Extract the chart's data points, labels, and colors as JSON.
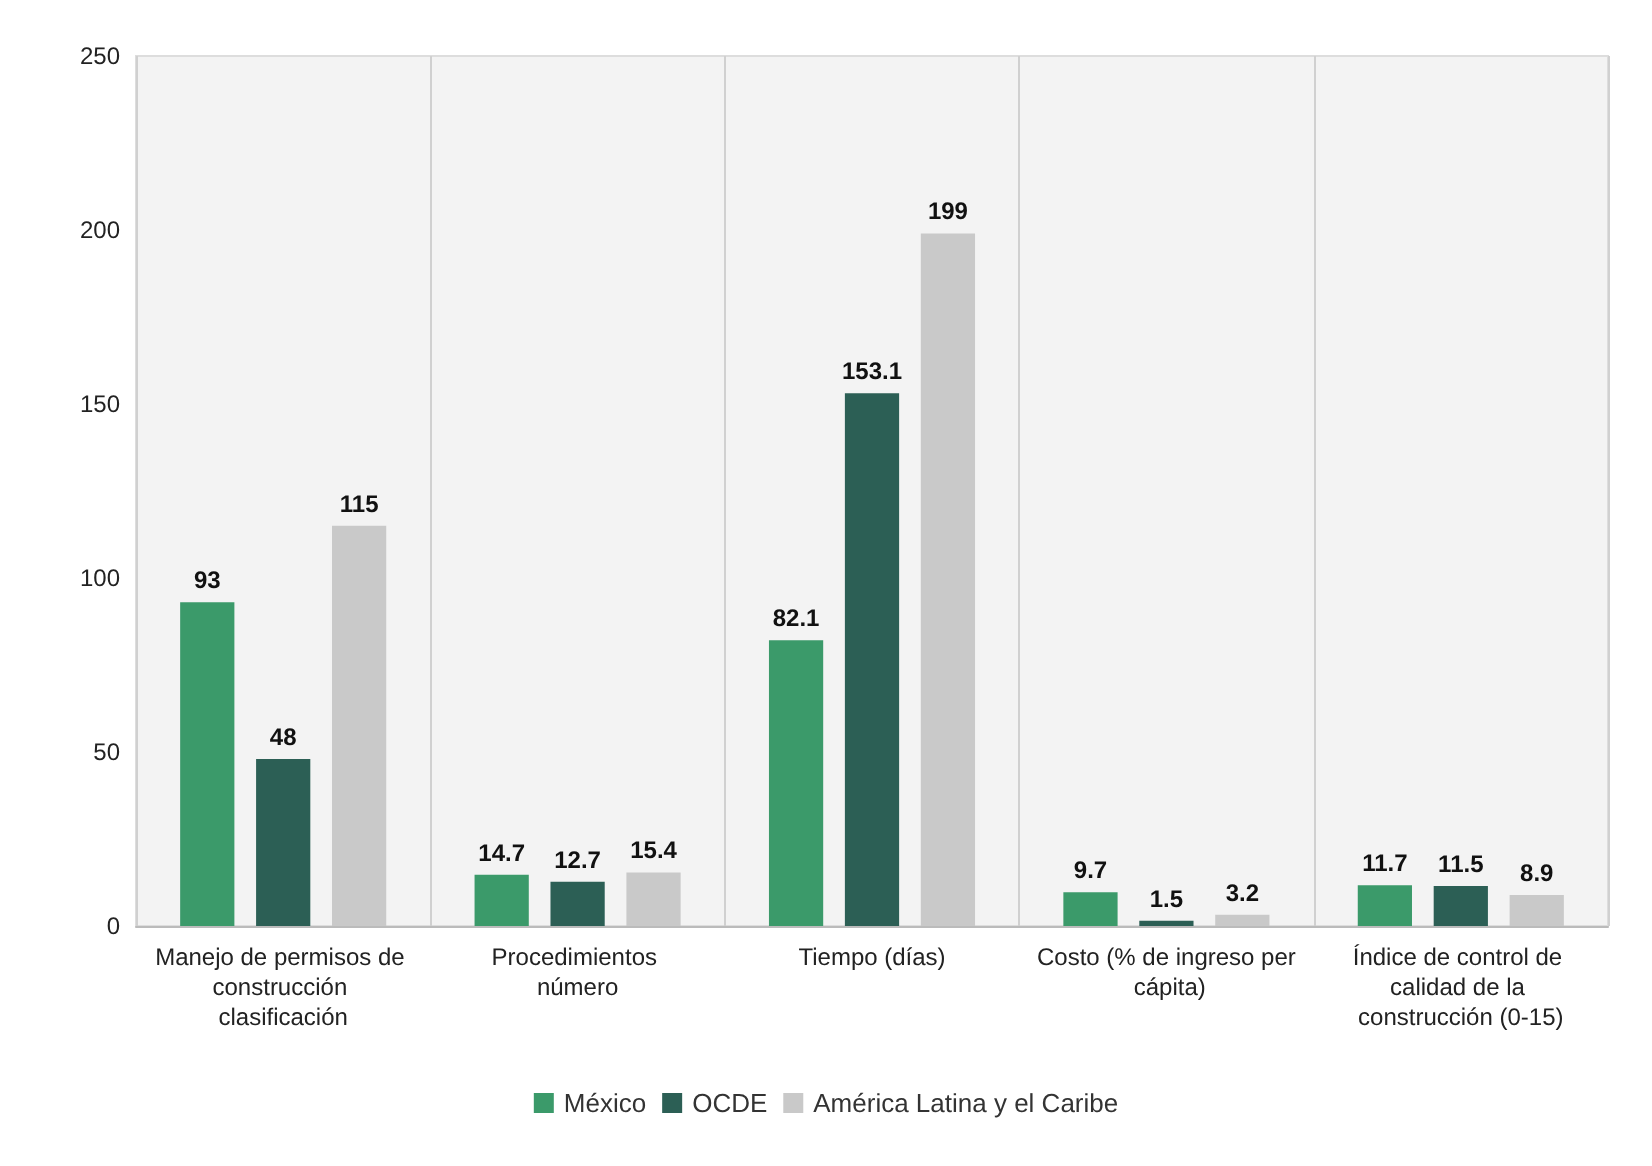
{
  "chart_data": {
    "type": "bar",
    "categories": [
      "Manejo de permisos de construcción clasificación",
      "Procedimientos número",
      "Tiempo (días)",
      "Costo (% de ingreso per cápita)",
      "Índice de control de calidad de la construcción (0-15)"
    ],
    "series": [
      {
        "name": "México",
        "color": "#3b9a6a",
        "values": [
          93,
          14.7,
          82.1,
          9.7,
          11.7
        ]
      },
      {
        "name": "OCDE",
        "color": "#2c5f55",
        "values": [
          48,
          12.7,
          153.1,
          1.5,
          11.5
        ]
      },
      {
        "name": "América Latina y el Caribe",
        "color": "#c9c9c9",
        "values": [
          115,
          15.4,
          199,
          3.2,
          8.9
        ]
      }
    ],
    "ylim": [
      0,
      250
    ],
    "yticks": [
      0,
      50,
      100,
      150,
      200,
      250
    ],
    "grid": "x",
    "legend": "bottom",
    "data_labels": true
  }
}
